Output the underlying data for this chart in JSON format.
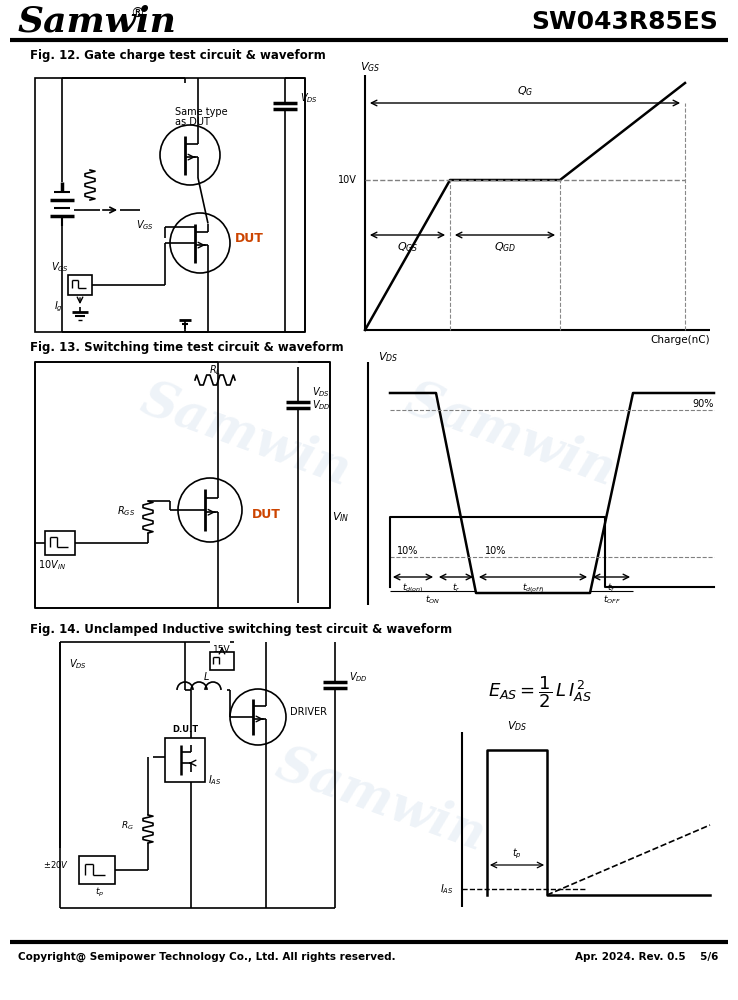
{
  "title_company": "Samwin",
  "title_part": "SW043R85ES",
  "fig12_title": "Fig. 12. Gate charge test circuit & waveform",
  "fig13_title": "Fig. 13. Switching time test circuit & waveform",
  "fig14_title": "Fig. 14. Unclamped Inductive switching test circuit & waveform",
  "footer_left": "Copyright@ Semipower Technology Co., Ltd. All rights reserved.",
  "footer_right": "Apr. 2024. Rev. 0.5    5/6",
  "bg_color": "#ffffff",
  "line_color": "#000000",
  "watermark_color": "#c8d8e8"
}
